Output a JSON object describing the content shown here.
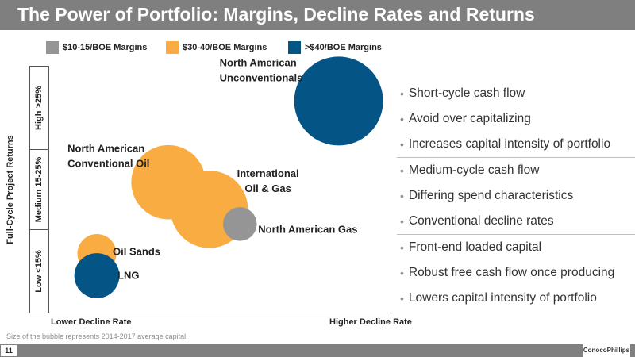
{
  "slide": {
    "title": "The Power of Portfolio: Margins, Decline Rates and Returns",
    "footnote": "Size of the bubble represents 2014-2017 average capital.",
    "page_number": "11",
    "logo_text": "ConocoPhillips"
  },
  "legend": [
    {
      "label": "$10-15/BOE Margins",
      "color": "#959595"
    },
    {
      "label": "$30-40/BOE Margins",
      "color": "#F9AC42"
    },
    {
      "label": ">$40/BOE Margins",
      "color": "#045486"
    }
  ],
  "bullets": {
    "groups": [
      [
        "Short-cycle cash flow",
        "Avoid over capitalizing",
        "Increases capital intensity of portfolio"
      ],
      [
        "Medium-cycle cash flow",
        "Differing spend characteristics",
        "Conventional decline rates"
      ],
      [
        "Front-end loaded capital",
        "Robust free cash flow once producing",
        "Lowers capital intensity of portfolio"
      ]
    ]
  },
  "chart_data": {
    "type": "scatter",
    "title": "",
    "xlabel_low": "Lower Decline Rate",
    "xlabel_high": "Higher Decline Rate",
    "ylabel": "Full-Cycle Project Returns",
    "y_bands": [
      "Low <15%",
      "Medium 15-25%",
      "High >25%"
    ],
    "bubble_size_note": "Size of the bubble represents 2014-2017 average capital.",
    "bubbles": [
      {
        "name": "North American Unconventionals",
        "label_lines": [
          "North American",
          "Unconventionals"
        ],
        "margin": ">$40/BOE Margins",
        "color": "#045486",
        "decline": 0.85,
        "returns": 0.86,
        "size": 1.0
      },
      {
        "name": "International Oil & Gas",
        "label_lines": [
          "International",
          "Oil & Gas"
        ],
        "margin": "$30-40/BOE Margins",
        "color": "#F9AC42",
        "decline": 0.47,
        "returns": 0.42,
        "size": 0.71
      },
      {
        "name": "North American Conventional Oil",
        "label_lines": [
          "North American",
          "Conventional Oil"
        ],
        "margin": "$30-40/BOE Margins",
        "color": "#F9AC42",
        "decline": 0.35,
        "returns": 0.53,
        "size": 0.64
      },
      {
        "name": "North American Gas",
        "label_lines": [
          "North American Gas"
        ],
        "margin": "$10-15/BOE Margins",
        "color": "#959595",
        "decline": 0.56,
        "returns": 0.36,
        "size": 0.06
      },
      {
        "name": "Oil Sands",
        "label_lines": [
          "Oil Sands"
        ],
        "margin": "$30-40/BOE Margins",
        "color": "#F9AC42",
        "decline": 0.14,
        "returns": 0.24,
        "size": 0.1
      },
      {
        "name": "LNG",
        "label_lines": [
          "LNG"
        ],
        "margin": ">$40/BOE Margins",
        "color": "#045486",
        "decline": 0.14,
        "returns": 0.15,
        "size": 0.16
      }
    ]
  }
}
